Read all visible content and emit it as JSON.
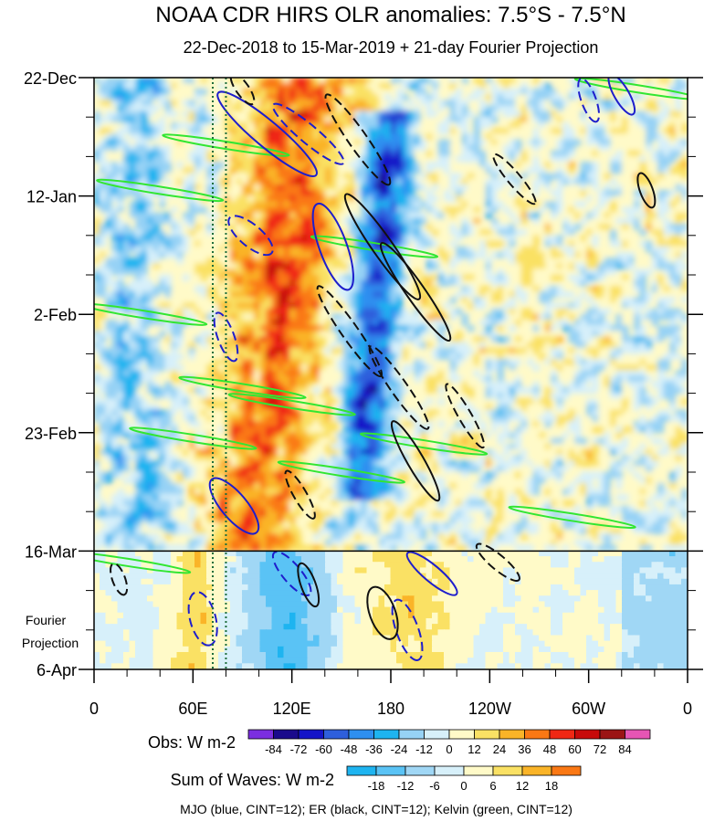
{
  "chart_data": {
    "type": "heatmap",
    "title": "NOAA CDR HIRS OLR anomalies: 7.5°S - 7.5°N",
    "subtitle": "22-Dec-2018 to 15-Mar-2019 + 21-day Fourier Projection",
    "y_ticks": [
      "22-Dec",
      "12-Jan",
      "2-Feb",
      "23-Feb",
      "16-Mar",
      "6-Apr"
    ],
    "y_tick_days": [
      0,
      21,
      42,
      63,
      84,
      105
    ],
    "x_ticks": [
      "0",
      "60E",
      "120E",
      "180",
      "120W",
      "60W",
      "0"
    ],
    "x_tick_lon": [
      0,
      60,
      120,
      180,
      240,
      300,
      360
    ],
    "xlim": [
      0,
      360
    ],
    "ylim_days": [
      0,
      105
    ],
    "projection_start_day": 84,
    "projection_label": [
      "Fourier",
      "Projection"
    ],
    "dotted_vertical_lines_lon": [
      72,
      80
    ],
    "obs_legend": {
      "label": "Obs: W m-2",
      "ticks": [
        "-84",
        "-72",
        "-60",
        "-48",
        "-36",
        "-24",
        "-12",
        "0",
        "12",
        "24",
        "36",
        "48",
        "60",
        "72",
        "84"
      ],
      "colors": [
        "#7b2ee0",
        "#1a0a8c",
        "#1414c8",
        "#2e5fdc",
        "#2e8ff0",
        "#1eb4f0",
        "#96d2f5",
        "#d7f0fa",
        "#fffac8",
        "#fae164",
        "#fab428",
        "#fa7814",
        "#f02814",
        "#c80a0a",
        "#9b1414",
        "#e655b4"
      ]
    },
    "waves_legend": {
      "label": "Sum of Waves: W m-2",
      "ticks": [
        "-18",
        "-12",
        "-6",
        "0",
        "6",
        "12",
        "18"
      ],
      "colors": [
        "#1eb4f0",
        "#5ac3f5",
        "#a0d7f5",
        "#d7f0fa",
        "#fffac8",
        "#fae164",
        "#fab428",
        "#fa7814"
      ]
    },
    "footer": "MJO (blue, CINT=12); ER (black, CINT=12); Kelvin (green, CINT=12)"
  }
}
